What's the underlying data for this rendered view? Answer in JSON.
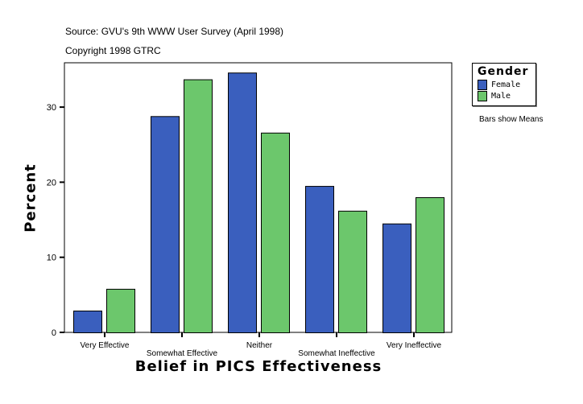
{
  "header": {
    "source": "Source: GVU's 9th WWW User Survey (April 1998)",
    "copyright": "Copyright 1998 GTRC"
  },
  "note": "Bars show Means",
  "chart_data": {
    "type": "bar",
    "title": "",
    "xlabel": "Belief in PICS Effectiveness",
    "ylabel": "Percent",
    "ylim": [
      0,
      36
    ],
    "yticks": [
      0,
      10,
      20,
      30
    ],
    "categories": [
      "Very Effective",
      "Somewhat Effective",
      "Neither",
      "Somewhat Ineffective",
      "Very Ineffective"
    ],
    "legend": {
      "title": "Gender",
      "placement": "right"
    },
    "series": [
      {
        "name": "Female",
        "color": "#3a5fbe",
        "values": [
          2.9,
          28.8,
          34.6,
          19.5,
          14.5
        ]
      },
      {
        "name": "Male",
        "color": "#6cc76c",
        "values": [
          5.8,
          33.7,
          26.6,
          16.2,
          18.0
        ]
      }
    ]
  }
}
